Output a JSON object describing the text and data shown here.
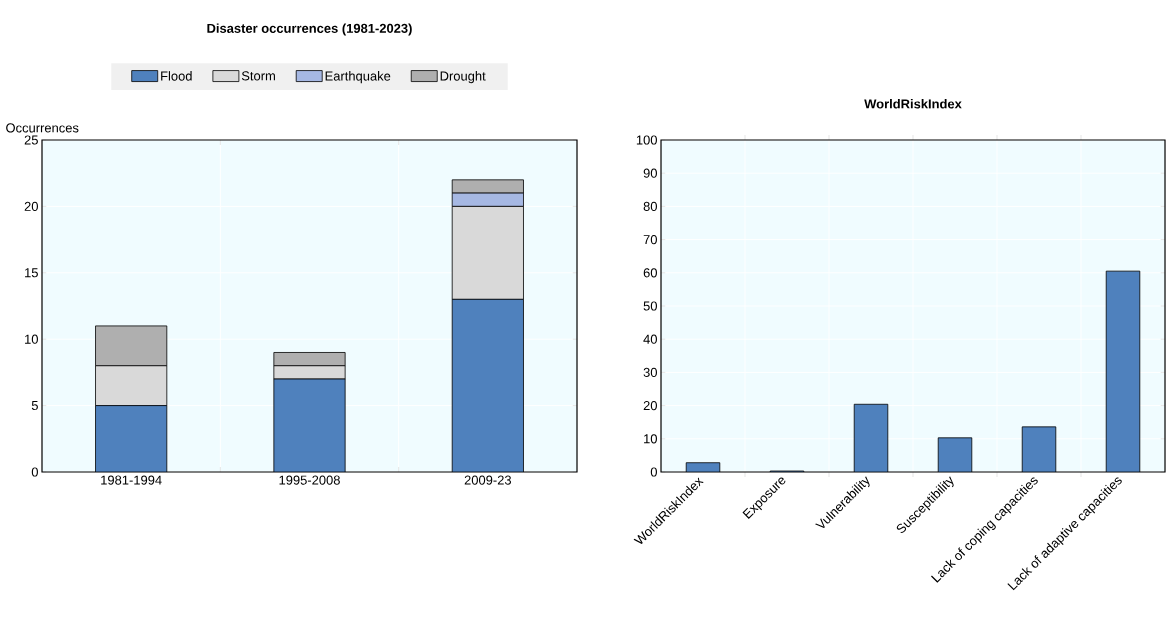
{
  "chart_data": [
    {
      "type": "bar",
      "title": "Disaster occurrences (1981-2023)",
      "ylabel": "Occurrences",
      "categories": [
        "1981-1994",
        "1995-2008",
        "2009-23"
      ],
      "stacked": true,
      "legend": "top",
      "grid": true,
      "ylim": [
        0,
        25
      ],
      "yticks": [
        0,
        5,
        10,
        15,
        20,
        25
      ],
      "series": [
        {
          "name": "Flood",
          "color": "#4f81bd",
          "values": [
            5,
            7,
            13
          ]
        },
        {
          "name": "Storm",
          "color": "#d9d9d9",
          "values": [
            3,
            1,
            7
          ]
        },
        {
          "name": "Earthquake",
          "color": "#a6b8e3",
          "values": [
            0,
            0,
            1
          ]
        },
        {
          "name": "Drought",
          "color": "#afafaf",
          "values": [
            3,
            1,
            1
          ]
        }
      ]
    },
    {
      "type": "bar",
      "title": "WorldRiskIndex",
      "categories": [
        "WorldRiskIndex",
        "Exposure",
        "Vulnerability",
        "Susceptibility",
        "Lack of coping capacities",
        "Lack of adaptive capacities"
      ],
      "values": [
        2.8,
        0.3,
        20.4,
        10.3,
        13.6,
        60.5
      ],
      "color": "#4f81bd",
      "grid": true,
      "ylim": [
        0,
        100
      ],
      "yticks": [
        0,
        10,
        20,
        30,
        40,
        50,
        60,
        70,
        80,
        90,
        100
      ]
    }
  ]
}
